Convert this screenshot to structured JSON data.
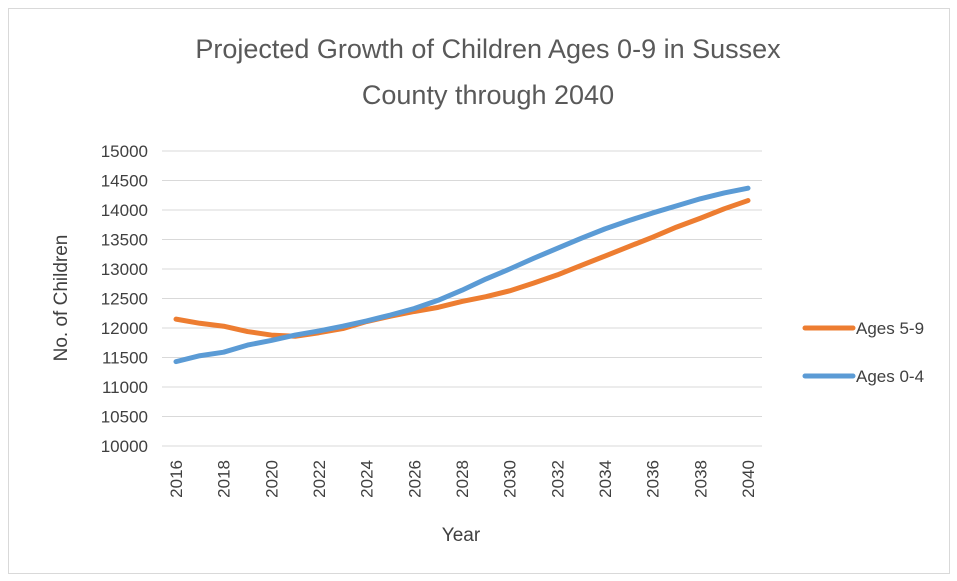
{
  "chart_data": {
    "type": "line",
    "title_lines": [
      "Projected Growth of Children Ages 0-9 in Sussex",
      "County through 2040"
    ],
    "xlabel": "Year",
    "ylabel": "No. of Children",
    "x": [
      2016,
      2017,
      2018,
      2019,
      2020,
      2021,
      2022,
      2023,
      2024,
      2025,
      2026,
      2027,
      2028,
      2029,
      2030,
      2031,
      2032,
      2033,
      2034,
      2035,
      2036,
      2037,
      2038,
      2039,
      2040
    ],
    "x_tick_labels": [
      "2016",
      "2018",
      "2020",
      "2022",
      "2024",
      "2026",
      "2028",
      "2030",
      "2032",
      "2034",
      "2036",
      "2038",
      "2040"
    ],
    "ylim": [
      10000,
      15000
    ],
    "y_tick_labels": [
      "10000",
      "10500",
      "11000",
      "11500",
      "12000",
      "12500",
      "13000",
      "13500",
      "14000",
      "14500",
      "15000"
    ],
    "grid": "horizontal",
    "legend_position": "right",
    "series": [
      {
        "name": "Ages 5-9",
        "color": "#ed7d31",
        "values": [
          12150,
          12080,
          12030,
          11940,
          11880,
          11860,
          11920,
          11990,
          12110,
          12200,
          12280,
          12350,
          12450,
          12530,
          12630,
          12760,
          12900,
          13060,
          13220,
          13380,
          13540,
          13710,
          13860,
          14020,
          14160
        ]
      },
      {
        "name": "Ages 0-4",
        "color": "#5b9bd5",
        "values": [
          11430,
          11530,
          11590,
          11710,
          11790,
          11880,
          11950,
          12030,
          12120,
          12220,
          12330,
          12470,
          12640,
          12830,
          13000,
          13180,
          13350,
          13520,
          13680,
          13820,
          13950,
          14070,
          14190,
          14290,
          14370
        ]
      }
    ]
  }
}
